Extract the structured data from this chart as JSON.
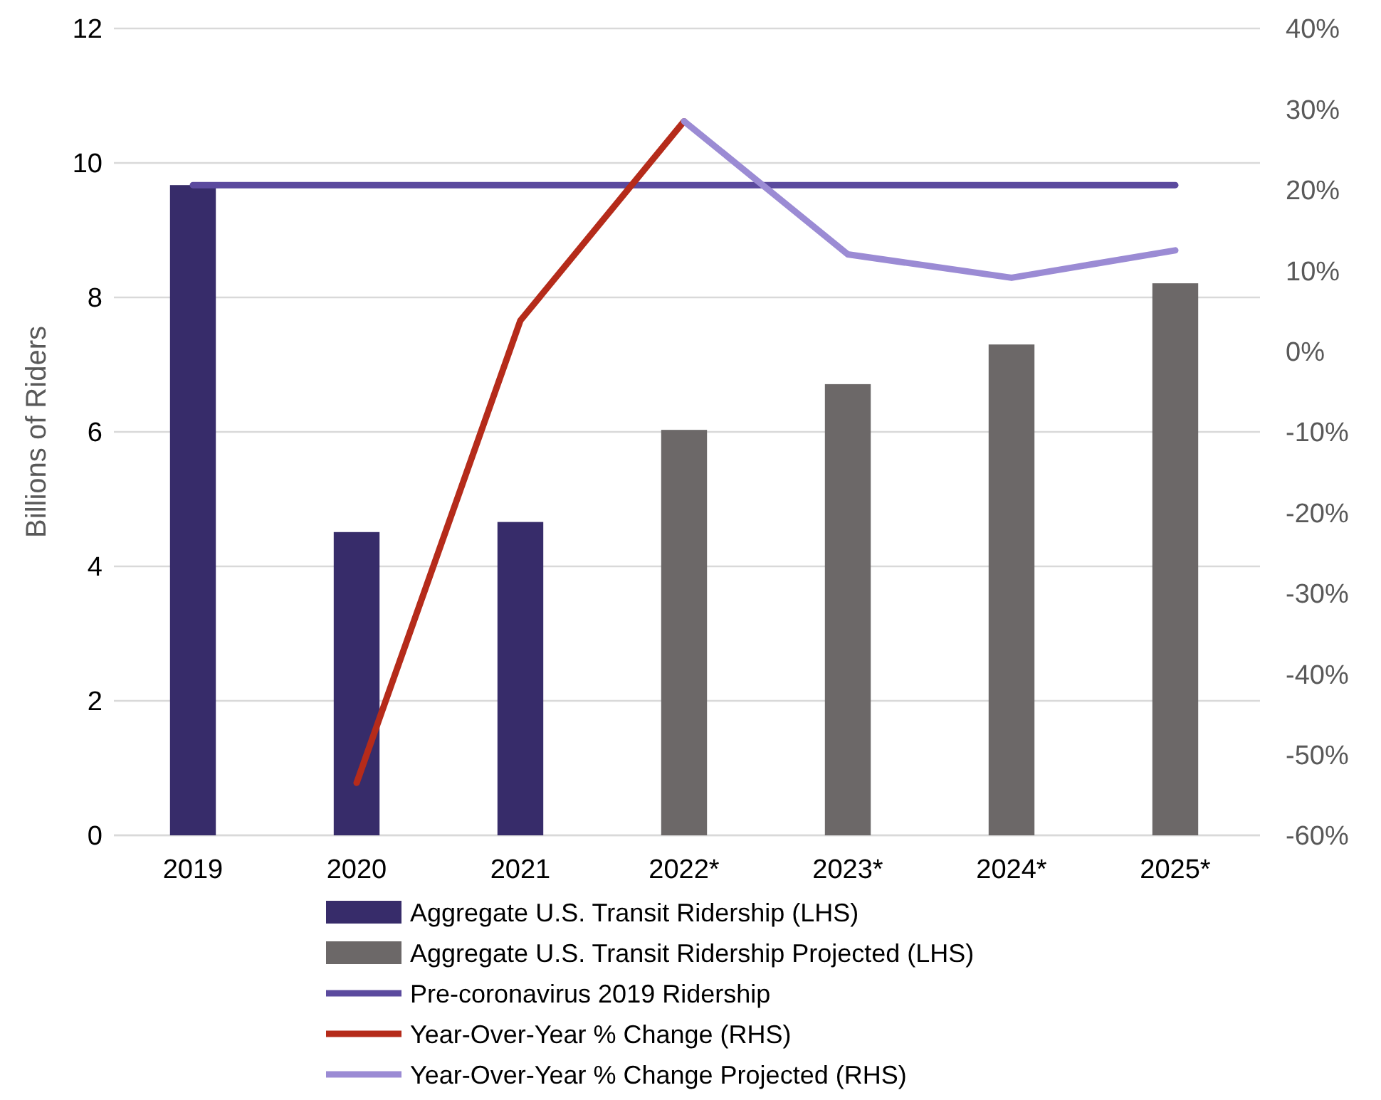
{
  "chart_data": {
    "type": "bar",
    "ylabel": "Billions of Riders",
    "categories": [
      "2019",
      "2020",
      "2021",
      "2022*",
      "2023*",
      "2024*",
      "2025*"
    ],
    "ylim": [
      0,
      12
    ],
    "yticks": [
      0,
      2,
      4,
      6,
      8,
      10,
      12
    ],
    "y2lim": [
      -60,
      40
    ],
    "y2ticks": [
      {
        "value": -60,
        "label": "-60%"
      },
      {
        "value": -50,
        "label": "-50%"
      },
      {
        "value": -40,
        "label": "-40%"
      },
      {
        "value": -30,
        "label": "-30%"
      },
      {
        "value": -20,
        "label": "-20%"
      },
      {
        "value": -10,
        "label": "-10%"
      },
      {
        "value": 0,
        "label": "0%"
      },
      {
        "value": 10,
        "label": "10%"
      },
      {
        "value": 20,
        "label": "20%"
      },
      {
        "value": 30,
        "label": "30%"
      },
      {
        "value": 40,
        "label": "40%"
      }
    ],
    "grid": "y",
    "legend": "bottom",
    "series": [
      {
        "name": "Aggregate U.S. Transit Ridership (LHS)",
        "color": "#372c6a",
        "values": [
          9.67,
          4.51,
          4.66,
          null,
          null,
          null,
          null
        ]
      },
      {
        "name": "Aggregate U.S. Transit Ridership Projected (LHS)",
        "color": "#6c6868",
        "values": [
          null,
          null,
          null,
          6.03,
          6.71,
          7.3,
          8.21
        ]
      },
      {
        "name": "Pre-coronavirus 2019 Ridership",
        "type": "line",
        "color": "#5b4a9e",
        "values": [
          9.67,
          9.67,
          9.67,
          9.67,
          9.67,
          9.67,
          9.67
        ]
      },
      {
        "name": "Year-Over-Year % Change (RHS)",
        "type": "line",
        "axis": "y2",
        "color": "#b52b1a",
        "values": [
          null,
          -53.5,
          3.8,
          28.5,
          null,
          null,
          null
        ]
      },
      {
        "name": "Year-Over-Year % Change Projected (RHS)",
        "type": "line",
        "axis": "y2",
        "color": "#9b8bd4",
        "values": [
          null,
          null,
          null,
          28.5,
          12,
          9.1,
          12.5
        ]
      }
    ]
  }
}
